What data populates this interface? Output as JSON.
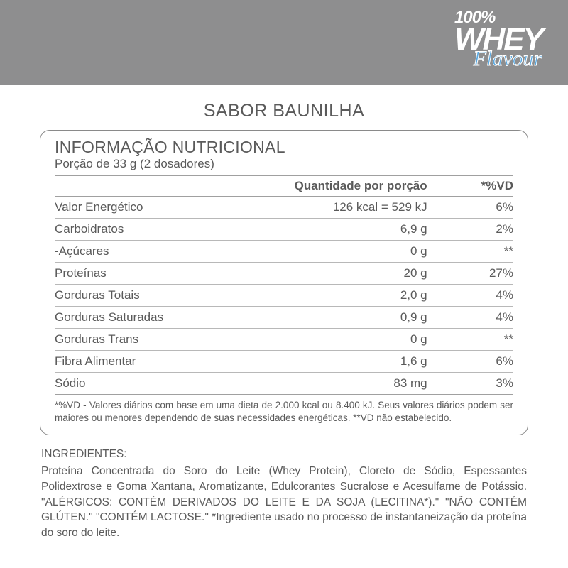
{
  "colors": {
    "header_band": "#8e8e8f",
    "text": "#5a5a5a",
    "border": "#8a8a8a",
    "row_border": "#b8b8b8",
    "logo_white": "#ffffff",
    "logo_blue": "#5aa8e0",
    "background": "#ffffff"
  },
  "logo": {
    "line1": "100%",
    "line2": "WHEY",
    "line3": "Flavour"
  },
  "flavor_title": "SABOR BAUNILHA",
  "nutrition": {
    "title": "INFORMAÇÃO NUTRICIONAL",
    "portion": "Porção de 33 g (2 dosadores)",
    "header_qty": "Quantidade por porção",
    "header_vd": "*%VD",
    "rows": [
      {
        "name": "Valor Energético",
        "qty": "126 kcal = 529 kJ",
        "vd": "6%"
      },
      {
        "name": "Carboidratos",
        "qty": "6,9 g",
        "vd": "2%"
      },
      {
        "name": " -Açúcares",
        "qty": "0 g",
        "vd": "**"
      },
      {
        "name": "Proteínas",
        "qty": "20 g",
        "vd": "27%"
      },
      {
        "name": "Gorduras Totais",
        "qty": "2,0 g",
        "vd": "4%"
      },
      {
        "name": "Gorduras Saturadas",
        "qty": "0,9 g",
        "vd": "4%"
      },
      {
        "name": "Gorduras Trans",
        "qty": "0 g",
        "vd": "**"
      },
      {
        "name": "Fibra Alimentar",
        "qty": "1,6 g",
        "vd": "6%"
      },
      {
        "name": "Sódio",
        "qty": "83 mg",
        "vd": "3%"
      }
    ],
    "footnote": "*%VD - Valores diários com base em uma dieta de 2.000 kcal ou 8.400 kJ. Seus valores diários podem ser maiores ou menores dependendo de suas necessidades energéticas. **VD não estabelecido."
  },
  "ingredients": {
    "label": "INGREDIENTES:",
    "text": "Proteína Concentrada do Soro do Leite (Whey Protein), Cloreto de Sódio, Espessantes Polidextrose e Goma Xantana, Aromatizante, Edulcorantes Sucralose e Acesulfame de Potássio. \"ALÉRGICOS: CONTÉM DERIVADOS DO LEITE E DA SOJA (LECITINA*).\" \"NÃO CONTÉM GLÚTEN.\" \"CONTÉM LACTOSE.\"   *Ingrediente usado no processo de instantaneização da proteína do soro do leite."
  }
}
